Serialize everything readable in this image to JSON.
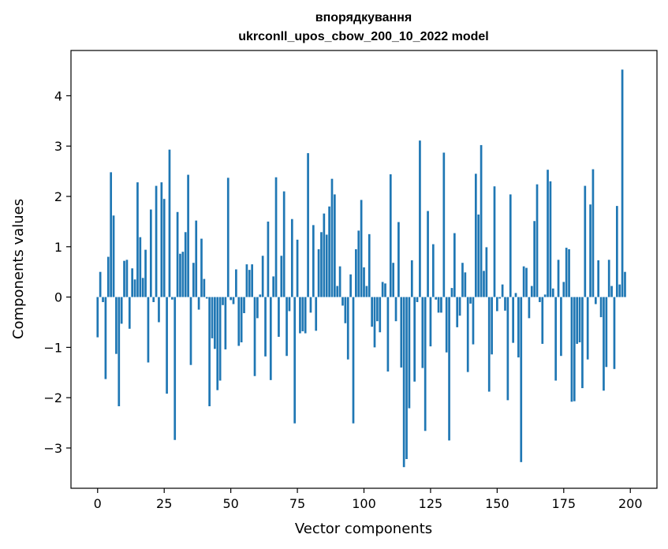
{
  "chart_data": {
    "type": "bar",
    "title": "впорядкування",
    "subtitle": "ukrconll_upos_cbow_200_10_2022 model",
    "xlabel": "Vector components",
    "ylabel": "Components values",
    "xlim": [
      -10,
      210
    ],
    "ylim": [
      -3.8,
      4.9
    ],
    "xticks": [
      0,
      25,
      50,
      75,
      100,
      125,
      150,
      175,
      200
    ],
    "xtick_labels": [
      "0",
      "25",
      "50",
      "75",
      "100",
      "125",
      "150",
      "175",
      "200"
    ],
    "yticks": [
      -3,
      -2,
      -1,
      0,
      1,
      2,
      3,
      4
    ],
    "ytick_labels": [
      "−3",
      "−2",
      "−1",
      "0",
      "1",
      "2",
      "3",
      "4"
    ],
    "bar_color": "#1f77b4",
    "grid": false,
    "values": [
      -0.8,
      0.5,
      -0.1,
      -1.63,
      0.8,
      2.48,
      1.62,
      -1.13,
      -2.17,
      -0.53,
      0.72,
      0.74,
      -0.63,
      0.57,
      0.35,
      2.28,
      1.19,
      0.38,
      0.94,
      -1.3,
      1.74,
      -0.1,
      2.21,
      -0.5,
      2.28,
      1.95,
      -1.92,
      2.93,
      -0.05,
      -2.84,
      1.69,
      0.86,
      0.9,
      1.29,
      2.43,
      -1.35,
      0.68,
      1.52,
      -0.25,
      1.16,
      0.36,
      -0.03,
      -2.17,
      -0.82,
      -1.03,
      -1.85,
      -1.66,
      -0.16,
      -1.04,
      2.37,
      -0.06,
      -0.14,
      0.55,
      -0.97,
      -0.9,
      -0.32,
      0.65,
      0.54,
      0.65,
      -1.57,
      -0.42,
      0.05,
      0.82,
      -1.18,
      1.5,
      -1.65,
      0.41,
      2.38,
      -0.79,
      0.82,
      2.1,
      -1.17,
      -0.28,
      1.55,
      -2.51,
      1.14,
      -0.72,
      -0.68,
      -0.72,
      2.86,
      -0.31,
      1.43,
      -0.67,
      0.95,
      1.29,
      1.66,
      1.24,
      1.8,
      2.35,
      2.04,
      0.22,
      0.61,
      -0.17,
      -0.52,
      -1.24,
      0.45,
      -2.51,
      0.95,
      1.32,
      1.93,
      0.59,
      0.22,
      1.25,
      -0.59,
      -1.0,
      -0.48,
      -0.7,
      0.3,
      0.27,
      -1.48,
      2.44,
      0.68,
      -0.48,
      1.49,
      -1.4,
      -3.38,
      -3.22,
      -2.21,
      0.73,
      -1.68,
      -0.1,
      3.11,
      -1.41,
      -2.66,
      1.71,
      -0.98,
      1.05,
      -0.05,
      -0.31,
      -0.31,
      2.87,
      -1.1,
      -2.85,
      0.18,
      1.27,
      -0.6,
      -0.37,
      0.68,
      0.49,
      -1.49,
      -0.13,
      -0.94,
      2.45,
      1.64,
      3.02,
      0.52,
      0.99,
      -1.88,
      -1.14,
      2.2,
      -0.28,
      -0.03,
      0.25,
      -0.27,
      -2.05,
      2.04,
      -0.91,
      0.08,
      -1.2,
      -3.28,
      0.61,
      0.58,
      -0.42,
      0.22,
      1.51,
      2.24,
      -0.1,
      -0.93,
      0.05,
      2.53,
      2.3,
      0.17,
      -1.66,
      0.74,
      -1.17,
      0.3,
      0.98,
      0.95,
      -2.08,
      -2.07,
      -0.93,
      -0.9,
      -1.81,
      2.21,
      -1.24,
      1.84,
      2.54,
      -0.14,
      0.73,
      -0.4,
      -1.86,
      -1.39,
      0.74,
      0.22,
      -1.43,
      1.81,
      0.25,
      4.52,
      0.5
    ]
  }
}
